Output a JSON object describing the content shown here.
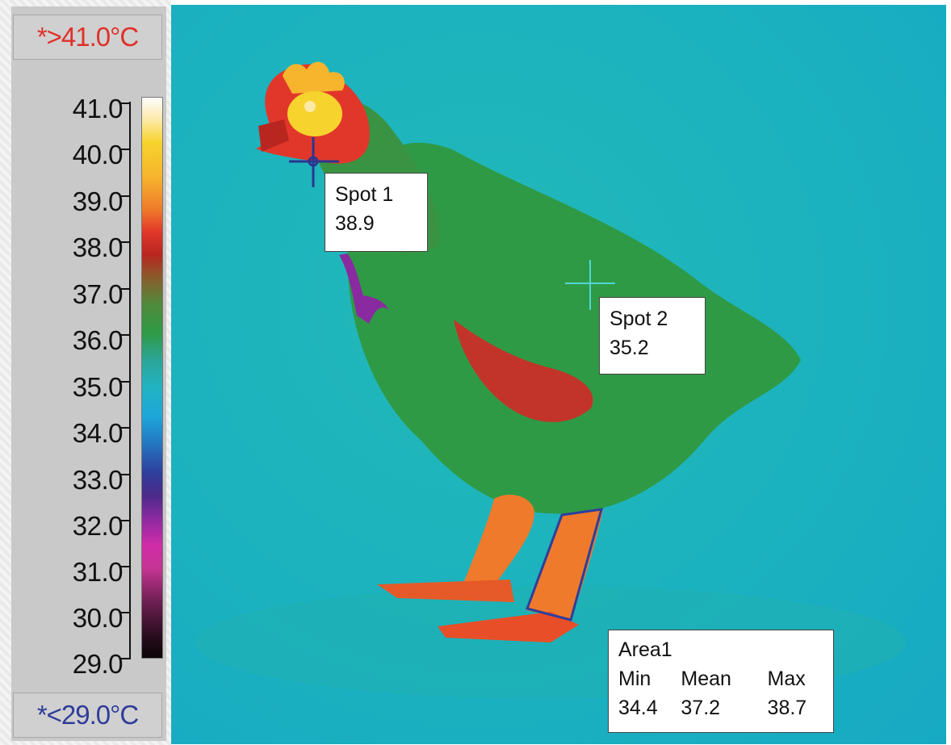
{
  "scale": {
    "max_limit": "*>41.0°C",
    "min_limit": "*<29.0°C",
    "ticks": [
      "41.0",
      "40.0",
      "39.0",
      "38.0",
      "37.0",
      "36.0",
      "35.0",
      "34.0",
      "33.0",
      "32.0",
      "31.0",
      "30.0",
      "29.0"
    ],
    "colors": {
      "max_limit_text": "#e0302a",
      "min_limit_text": "#2f3c9a"
    }
  },
  "markers": {
    "spot1": {
      "label": "Spot 1",
      "value": "38.9"
    },
    "spot2": {
      "label": "Spot 2",
      "value": "35.2"
    },
    "area1": {
      "label": "Area1",
      "headers": [
        "Min",
        "Mean",
        "Max"
      ],
      "values": [
        "34.4",
        "37.2",
        "38.7"
      ]
    }
  }
}
